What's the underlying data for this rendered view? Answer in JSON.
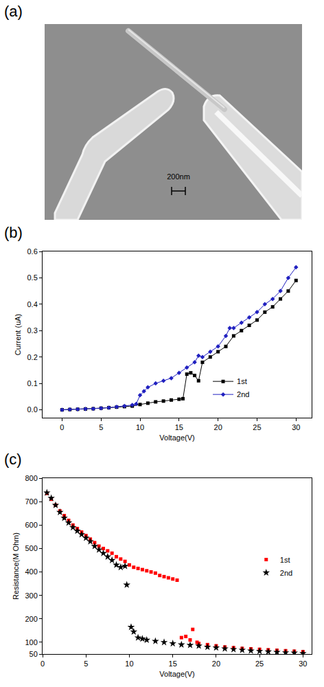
{
  "image": {
    "title": "(a)",
    "scale_bar": "200nm"
  },
  "chart_data": [
    {
      "type": "line",
      "title": "(b)",
      "x_label": "Voltage(V)",
      "y_label": "Current (uA)",
      "xlim": [
        -2.5,
        32
      ],
      "xticks": [
        0,
        5,
        10,
        15,
        20,
        25,
        30
      ],
      "ylim": [
        -0.03,
        0.6
      ],
      "yticks": [
        {
          "value": 0,
          "label": "0.0"
        },
        0.1,
        0.2,
        0.3,
        0.4,
        0.5,
        0.6
      ],
      "grid": false,
      "legend": "lower right",
      "series": [
        {
          "name": "1st",
          "color": "#000000",
          "marker": "square",
          "x": [
            0,
            1,
            2,
            3,
            4,
            5,
            6,
            7,
            8,
            9,
            10,
            11,
            12,
            13,
            14,
            15,
            15.5,
            16,
            16.5,
            17,
            17.5,
            18,
            19,
            20,
            21,
            22,
            23,
            24,
            25,
            26,
            27,
            28,
            29,
            30
          ],
          "values": [
            0,
            0.001,
            0.002,
            0.003,
            0.004,
            0.006,
            0.008,
            0.01,
            0.012,
            0.014,
            0.02,
            0.025,
            0.03,
            0.033,
            0.037,
            0.04,
            0.042,
            0.135,
            0.14,
            0.13,
            0.11,
            0.18,
            0.2,
            0.22,
            0.24,
            0.28,
            0.3,
            0.32,
            0.34,
            0.37,
            0.39,
            0.42,
            0.45,
            0.49
          ]
        },
        {
          "name": "2nd",
          "color": "#2020c0",
          "marker": "diamond",
          "x": [
            0,
            1,
            2,
            3,
            4,
            5,
            6,
            7,
            8,
            9,
            9.5,
            10,
            10.5,
            11,
            12,
            13,
            14,
            15,
            16,
            17,
            17.5,
            18,
            19,
            20,
            21,
            21.5,
            22,
            23,
            24,
            25,
            26,
            27,
            28,
            29,
            30
          ],
          "values": [
            0,
            0.001,
            0.002,
            0.003,
            0.004,
            0.006,
            0.008,
            0.011,
            0.014,
            0.018,
            0.022,
            0.055,
            0.07,
            0.085,
            0.1,
            0.11,
            0.12,
            0.14,
            0.16,
            0.18,
            0.205,
            0.2,
            0.22,
            0.24,
            0.28,
            0.31,
            0.31,
            0.33,
            0.35,
            0.37,
            0.4,
            0.42,
            0.45,
            0.5,
            0.54
          ]
        }
      ]
    },
    {
      "type": "scatter",
      "title": "(c)",
      "x_label": "Voltage(V)",
      "y_label": "Resistance(M Ohm)",
      "xlim": [
        0,
        31
      ],
      "xticks": [
        0,
        5,
        10,
        15,
        20,
        25,
        30
      ],
      "ylim": [
        50,
        800
      ],
      "yticks": [
        50,
        100,
        200,
        300,
        400,
        500,
        600,
        700,
        800
      ],
      "grid": false,
      "legend": "right",
      "series": [
        {
          "name": "1st",
          "color": "#ff0000",
          "marker": "square",
          "x": [
            0.5,
            1,
            1.5,
            2,
            2.5,
            3,
            3.5,
            4,
            4.5,
            5,
            5.5,
            6,
            6.5,
            7,
            7.5,
            8,
            8.5,
            9,
            9.5,
            10,
            10.5,
            11,
            11.5,
            12,
            12.5,
            13,
            13.5,
            14,
            14.5,
            15,
            15.5,
            16,
            16.5,
            17,
            17.3,
            17.8,
            18,
            19,
            20,
            21,
            22,
            23,
            24,
            25,
            26,
            27,
            28,
            29,
            30
          ],
          "values": [
            735,
            710,
            685,
            660,
            640,
            620,
            600,
            585,
            570,
            555,
            540,
            525,
            510,
            500,
            490,
            480,
            465,
            455,
            445,
            430,
            420,
            415,
            410,
            405,
            400,
            395,
            385,
            380,
            375,
            370,
            365,
            120,
            125,
            110,
            155,
            100,
            95,
            90,
            85,
            80,
            77,
            74,
            72,
            70,
            68,
            66,
            64,
            62,
            60
          ]
        },
        {
          "name": "2nd",
          "color": "#000000",
          "marker": "star",
          "x": [
            0.5,
            1,
            1.5,
            2,
            2.5,
            3,
            3.5,
            4,
            4.5,
            5,
            5.5,
            6,
            6.5,
            7,
            7.5,
            8,
            8.5,
            9,
            9.5,
            9.7,
            10.2,
            10.5,
            11,
            11.5,
            12,
            13,
            14,
            15,
            16,
            17,
            18,
            19,
            20,
            21,
            22,
            23,
            24,
            25,
            26,
            27,
            28,
            29,
            30
          ],
          "values": [
            738,
            715,
            685,
            655,
            630,
            610,
            590,
            575,
            560,
            545,
            530,
            510,
            495,
            480,
            465,
            450,
            430,
            420,
            425,
            345,
            165,
            145,
            120,
            115,
            110,
            105,
            100,
            95,
            90,
            88,
            85,
            80,
            77,
            73,
            70,
            67,
            64,
            62,
            60,
            58,
            56,
            55,
            53
          ]
        }
      ]
    }
  ]
}
